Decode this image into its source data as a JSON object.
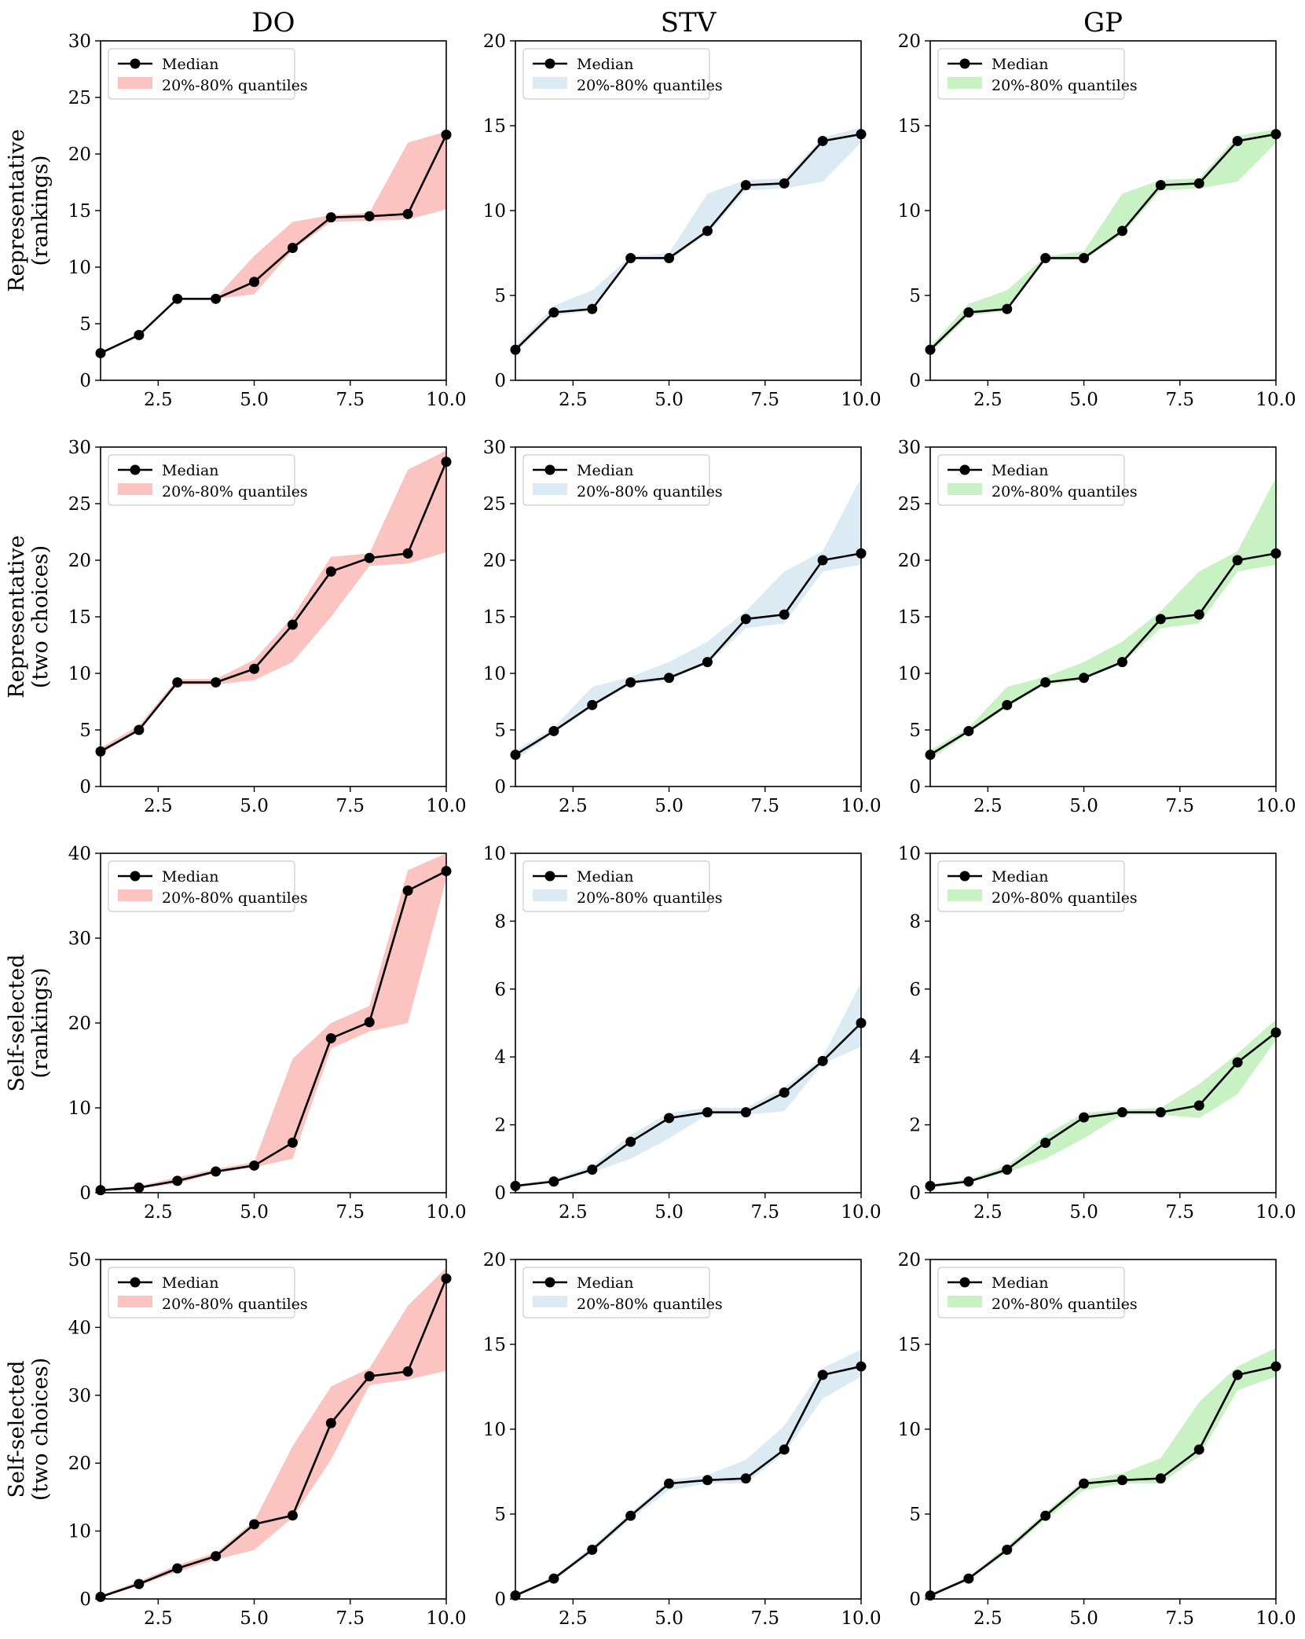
{
  "figure": {
    "column_titles": [
      "DO",
      "STV",
      "GP"
    ],
    "row_labels": [
      [
        "Representative",
        "(rankings)"
      ],
      [
        "Representative",
        "(two choices)"
      ],
      [
        "Self-selected",
        "(rankings)"
      ],
      [
        "Self-selected",
        "(two choices)"
      ]
    ],
    "legend": {
      "median_label": "Median",
      "band_label": "20%-80% quantiles"
    },
    "colors": {
      "line": "#000000",
      "DO": "#fbc4c0",
      "STV": "#dcebf3",
      "GP": "#c9f2c4"
    }
  },
  "chart_data": [
    {
      "type": "line",
      "row": 0,
      "col": 0,
      "method": "DO",
      "title": "DO",
      "ylabel": "Representative (rankings)",
      "xlim": [
        1,
        10
      ],
      "ylim": [
        0,
        30
      ],
      "xticks": [
        2.5,
        5.0,
        7.5,
        10.0
      ],
      "yticks": [
        0,
        5,
        10,
        15,
        20,
        25,
        30
      ],
      "x": [
        1,
        2,
        3,
        4,
        5,
        6,
        7,
        8,
        9,
        10
      ],
      "series": [
        {
          "name": "Median",
          "values": [
            2.4,
            4.0,
            7.2,
            7.2,
            8.7,
            11.7,
            14.4,
            14.5,
            14.7,
            21.7
          ]
        },
        {
          "name": "20%-80% quantiles",
          "lower": [
            2.4,
            4.0,
            7.2,
            7.2,
            7.6,
            11.5,
            14.0,
            14.1,
            14.2,
            15.1
          ],
          "upper": [
            2.4,
            4.0,
            7.3,
            7.3,
            11.0,
            14.0,
            14.6,
            14.8,
            21.0,
            22.0
          ]
        }
      ]
    },
    {
      "type": "line",
      "row": 0,
      "col": 1,
      "method": "STV",
      "title": "STV",
      "ylabel": "",
      "xlim": [
        1,
        10
      ],
      "ylim": [
        0,
        20
      ],
      "xticks": [
        2.5,
        5.0,
        7.5,
        10.0
      ],
      "yticks": [
        0,
        5,
        10,
        15,
        20
      ],
      "x": [
        1,
        2,
        3,
        4,
        5,
        6,
        7,
        8,
        9,
        10
      ],
      "series": [
        {
          "name": "Median",
          "values": [
            1.8,
            4.0,
            4.2,
            7.2,
            7.2,
            8.8,
            11.5,
            11.6,
            14.1,
            14.5
          ]
        },
        {
          "name": "20%-80% quantiles",
          "lower": [
            1.6,
            3.8,
            4.1,
            7.1,
            7.1,
            8.6,
            11.2,
            11.3,
            11.7,
            14.0
          ],
          "upper": [
            2.0,
            4.4,
            5.3,
            7.3,
            7.5,
            11.0,
            11.8,
            11.9,
            14.3,
            14.9
          ]
        }
      ]
    },
    {
      "type": "line",
      "row": 0,
      "col": 2,
      "method": "GP",
      "title": "GP",
      "ylabel": "",
      "xlim": [
        1,
        10
      ],
      "ylim": [
        0,
        20
      ],
      "xticks": [
        2.5,
        5.0,
        7.5,
        10.0
      ],
      "yticks": [
        0,
        5,
        10,
        15,
        20
      ],
      "x": [
        1,
        2,
        3,
        4,
        5,
        6,
        7,
        8,
        9,
        10
      ],
      "series": [
        {
          "name": "Median",
          "values": [
            1.8,
            4.0,
            4.2,
            7.2,
            7.2,
            8.8,
            11.5,
            11.6,
            14.1,
            14.5
          ]
        },
        {
          "name": "20%-80% quantiles",
          "lower": [
            1.6,
            3.8,
            4.1,
            7.1,
            7.1,
            8.6,
            11.2,
            11.3,
            11.7,
            14.0
          ],
          "upper": [
            2.0,
            4.5,
            5.3,
            7.3,
            7.6,
            11.0,
            11.8,
            11.9,
            14.4,
            14.8
          ]
        }
      ]
    },
    {
      "type": "line",
      "row": 1,
      "col": 0,
      "method": "DO",
      "title": "",
      "ylabel": "Representative (two choices)",
      "xlim": [
        1,
        10
      ],
      "ylim": [
        0,
        30
      ],
      "xticks": [
        2.5,
        5.0,
        7.5,
        10.0
      ],
      "yticks": [
        0,
        5,
        10,
        15,
        20,
        25,
        30
      ],
      "x": [
        1,
        2,
        3,
        4,
        5,
        6,
        7,
        8,
        9,
        10
      ],
      "series": [
        {
          "name": "Median",
          "values": [
            3.1,
            5.0,
            9.2,
            9.2,
            10.4,
            14.3,
            19.0,
            20.2,
            20.6,
            28.7
          ]
        },
        {
          "name": "20%-80% quantiles",
          "lower": [
            2.9,
            4.9,
            9.0,
            9.0,
            9.4,
            11.0,
            15.0,
            19.5,
            19.7,
            20.7
          ],
          "upper": [
            3.4,
            5.4,
            9.5,
            9.5,
            11.2,
            15.0,
            20.3,
            20.6,
            28.0,
            29.7
          ]
        }
      ]
    },
    {
      "type": "line",
      "row": 1,
      "col": 1,
      "method": "STV",
      "title": "",
      "ylabel": "",
      "xlim": [
        1,
        10
      ],
      "ylim": [
        0,
        30
      ],
      "xticks": [
        2.5,
        5.0,
        7.5,
        10.0
      ],
      "yticks": [
        0,
        5,
        10,
        15,
        20,
        25,
        30
      ],
      "x": [
        1,
        2,
        3,
        4,
        5,
        6,
        7,
        8,
        9,
        10
      ],
      "series": [
        {
          "name": "Median",
          "values": [
            2.8,
            4.9,
            7.2,
            9.2,
            9.6,
            11.0,
            14.8,
            15.2,
            20.0,
            20.6
          ]
        },
        {
          "name": "20%-80% quantiles",
          "lower": [
            2.4,
            4.7,
            7.0,
            9.0,
            9.4,
            10.9,
            14.0,
            14.4,
            19.0,
            19.6
          ],
          "upper": [
            3.2,
            5.2,
            8.8,
            9.7,
            11.0,
            12.8,
            15.5,
            19.0,
            20.8,
            27.3
          ]
        }
      ]
    },
    {
      "type": "line",
      "row": 1,
      "col": 2,
      "method": "GP",
      "title": "",
      "ylabel": "",
      "xlim": [
        1,
        10
      ],
      "ylim": [
        0,
        30
      ],
      "xticks": [
        2.5,
        5.0,
        7.5,
        10.0
      ],
      "yticks": [
        0,
        5,
        10,
        15,
        20,
        25,
        30
      ],
      "x": [
        1,
        2,
        3,
        4,
        5,
        6,
        7,
        8,
        9,
        10
      ],
      "series": [
        {
          "name": "Median",
          "values": [
            2.8,
            4.9,
            7.2,
            9.2,
            9.6,
            11.0,
            14.8,
            15.2,
            20.0,
            20.6
          ]
        },
        {
          "name": "20%-80% quantiles",
          "lower": [
            2.4,
            4.7,
            7.0,
            9.0,
            9.4,
            10.9,
            14.0,
            14.4,
            19.0,
            19.6
          ],
          "upper": [
            3.2,
            5.2,
            8.8,
            9.7,
            11.0,
            12.8,
            15.5,
            19.0,
            20.8,
            27.3
          ]
        }
      ]
    },
    {
      "type": "line",
      "row": 2,
      "col": 0,
      "method": "DO",
      "title": "",
      "ylabel": "Self-selected (rankings)",
      "xlim": [
        1,
        10
      ],
      "ylim": [
        0,
        40
      ],
      "xticks": [
        2.5,
        5.0,
        7.5,
        10.0
      ],
      "yticks": [
        0,
        10,
        20,
        30,
        40
      ],
      "x": [
        1,
        2,
        3,
        4,
        5,
        6,
        7,
        8,
        9,
        10
      ],
      "series": [
        {
          "name": "Median",
          "values": [
            0.3,
            0.6,
            1.4,
            2.5,
            3.2,
            5.9,
            18.2,
            20.1,
            35.6,
            37.9
          ]
        },
        {
          "name": "20%-80% quantiles",
          "lower": [
            0.2,
            0.5,
            1.1,
            2.3,
            3.0,
            4.0,
            17.0,
            19.0,
            20.0,
            37.0
          ],
          "upper": [
            0.4,
            0.8,
            1.8,
            2.8,
            3.6,
            15.8,
            20.0,
            22.0,
            38.0,
            40.0
          ]
        }
      ]
    },
    {
      "type": "line",
      "row": 2,
      "col": 1,
      "method": "STV",
      "title": "",
      "ylabel": "",
      "xlim": [
        1,
        10
      ],
      "ylim": [
        0,
        10
      ],
      "xticks": [
        2.5,
        5.0,
        7.5,
        10.0
      ],
      "yticks": [
        0,
        2,
        4,
        6,
        8,
        10
      ],
      "x": [
        1,
        2,
        3,
        4,
        5,
        6,
        7,
        8,
        9,
        10
      ],
      "series": [
        {
          "name": "Median",
          "values": [
            0.2,
            0.33,
            0.68,
            1.5,
            2.2,
            2.37,
            2.37,
            2.95,
            3.88,
            5.0
          ]
        },
        {
          "name": "20%-80% quantiles",
          "lower": [
            0.15,
            0.3,
            0.6,
            1.0,
            1.6,
            2.3,
            2.3,
            2.4,
            3.8,
            4.3
          ],
          "upper": [
            0.25,
            0.4,
            0.8,
            1.7,
            2.35,
            2.5,
            2.5,
            3.1,
            4.0,
            6.2
          ]
        }
      ]
    },
    {
      "type": "line",
      "row": 2,
      "col": 2,
      "method": "GP",
      "title": "",
      "ylabel": "",
      "xlim": [
        1,
        10
      ],
      "ylim": [
        0,
        10
      ],
      "xticks": [
        2.5,
        5.0,
        7.5,
        10.0
      ],
      "yticks": [
        0,
        2,
        4,
        6,
        8,
        10
      ],
      "x": [
        1,
        2,
        3,
        4,
        5,
        6,
        7,
        8,
        9,
        10
      ],
      "series": [
        {
          "name": "Median",
          "values": [
            0.2,
            0.33,
            0.68,
            1.47,
            2.22,
            2.37,
            2.37,
            2.57,
            3.84,
            4.72
          ]
        },
        {
          "name": "20%-80% quantiles",
          "lower": [
            0.15,
            0.3,
            0.6,
            1.0,
            1.6,
            2.3,
            2.3,
            2.2,
            2.9,
            4.5
          ],
          "upper": [
            0.25,
            0.4,
            0.8,
            1.7,
            2.35,
            2.45,
            2.5,
            3.2,
            4.1,
            5.1
          ]
        }
      ]
    },
    {
      "type": "line",
      "row": 3,
      "col": 0,
      "method": "DO",
      "title": "",
      "ylabel": "Self-selected (two choices)",
      "xlim": [
        1,
        10
      ],
      "ylim": [
        0,
        50
      ],
      "xticks": [
        2.5,
        5.0,
        7.5,
        10.0
      ],
      "yticks": [
        0,
        10,
        20,
        30,
        40,
        50
      ],
      "x": [
        1,
        2,
        3,
        4,
        5,
        6,
        7,
        8,
        9,
        10
      ],
      "series": [
        {
          "name": "Median",
          "values": [
            0.3,
            2.2,
            4.5,
            6.3,
            11.0,
            12.3,
            25.9,
            32.8,
            33.5,
            47.2
          ]
        },
        {
          "name": "20%-80% quantiles",
          "lower": [
            0.2,
            2.0,
            4.0,
            5.8,
            7.2,
            12.0,
            20.5,
            31.5,
            32.3,
            33.6
          ],
          "upper": [
            0.5,
            2.6,
            5.0,
            6.8,
            11.5,
            22.5,
            31.3,
            34.0,
            43.2,
            48.8
          ]
        }
      ]
    },
    {
      "type": "line",
      "row": 3,
      "col": 1,
      "method": "STV",
      "title": "",
      "ylabel": "",
      "xlim": [
        1,
        10
      ],
      "ylim": [
        0,
        20
      ],
      "xticks": [
        2.5,
        5.0,
        7.5,
        10.0
      ],
      "yticks": [
        0,
        5,
        10,
        15,
        20
      ],
      "x": [
        1,
        2,
        3,
        4,
        5,
        6,
        7,
        8,
        9,
        10
      ],
      "series": [
        {
          "name": "Median",
          "values": [
            0.2,
            1.2,
            2.9,
            4.9,
            6.8,
            7.0,
            7.1,
            8.8,
            13.2,
            13.7
          ]
        },
        {
          "name": "20%-80% quantiles",
          "lower": [
            0.15,
            1.1,
            2.7,
            4.7,
            6.4,
            6.8,
            6.8,
            8.6,
            11.8,
            13.1
          ],
          "upper": [
            0.3,
            1.3,
            3.1,
            5.1,
            7.0,
            7.3,
            8.2,
            10.2,
            13.6,
            14.7
          ]
        }
      ]
    },
    {
      "type": "line",
      "row": 3,
      "col": 2,
      "method": "GP",
      "title": "",
      "ylabel": "",
      "xlim": [
        1,
        10
      ],
      "ylim": [
        0,
        20
      ],
      "xticks": [
        2.5,
        5.0,
        7.5,
        10.0
      ],
      "yticks": [
        0,
        5,
        10,
        15,
        20
      ],
      "x": [
        1,
        2,
        3,
        4,
        5,
        6,
        7,
        8,
        9,
        10
      ],
      "series": [
        {
          "name": "Median",
          "values": [
            0.2,
            1.2,
            2.9,
            4.9,
            6.8,
            7.0,
            7.1,
            8.8,
            13.2,
            13.7
          ]
        },
        {
          "name": "20%-80% quantiles",
          "lower": [
            0.15,
            1.1,
            2.7,
            4.7,
            6.4,
            6.8,
            6.8,
            8.4,
            12.3,
            13.1
          ],
          "upper": [
            0.3,
            1.3,
            3.1,
            5.1,
            7.0,
            7.4,
            8.3,
            11.6,
            13.7,
            14.8
          ]
        }
      ]
    }
  ]
}
